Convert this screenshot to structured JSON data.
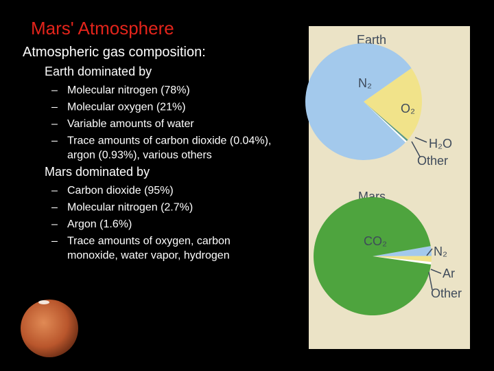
{
  "title": "Mars' Atmosphere",
  "heading": "Atmospheric gas composition:",
  "sections": [
    {
      "label": "Earth dominated by",
      "items": [
        [
          "Molecular nitrogen (78%)"
        ],
        [
          "Molecular oxygen (21%)"
        ],
        [
          "Variable amounts of water"
        ],
        [
          "Trace amounts of carbon dioxide (0.04%),",
          "argon (0.93%), various others"
        ]
      ]
    },
    {
      "label": "Mars dominated by",
      "items": [
        [
          "Carbon dioxide (95%)"
        ],
        [
          "Molecular nitrogen (2.7%)"
        ],
        [
          "Argon (1.6%)"
        ],
        [
          "Trace amounts of oxygen, carbon",
          "monoxide, water vapor, hydrogen"
        ]
      ]
    }
  ],
  "bullet": "–",
  "charts": [
    {
      "type": "pie",
      "title": "Earth",
      "labels": [
        "O₂",
        "H₂O",
        "Other",
        "N₂"
      ],
      "values": [
        21,
        0.5,
        0.5,
        78
      ],
      "colors": [
        "#f1e38a",
        "#5a9a8a",
        "#ffffff",
        "#a3c9ec"
      ]
    },
    {
      "type": "pie",
      "title": "Mars",
      "labels": [
        "N₂",
        "Ar",
        "Other",
        "CO₂"
      ],
      "values": [
        2.7,
        1.6,
        0.7,
        95
      ],
      "colors": [
        "#a3c9ec",
        "#f1e38a",
        "#ffffff",
        "#4ea43e"
      ]
    }
  ]
}
